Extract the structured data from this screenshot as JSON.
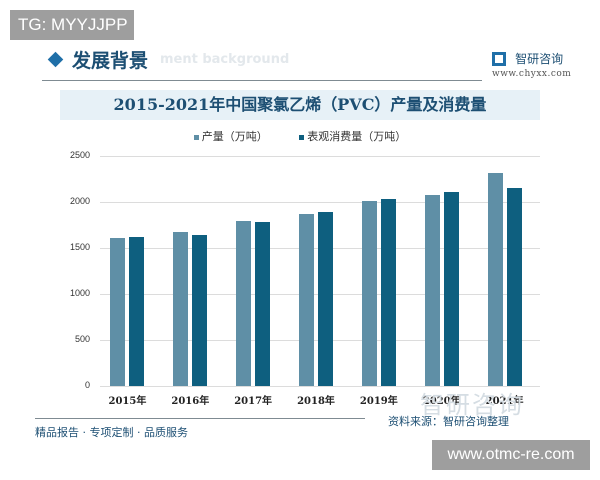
{
  "badge_top": "TG: MYYJJPP",
  "section": {
    "title": "发展背景",
    "ghost_text": "ment background"
  },
  "brand": {
    "name": "智研咨询",
    "url": "www.chyxx.com"
  },
  "colors": {
    "production": "#5f8fa6",
    "consumption": "#0e5f7f",
    "accent": "#1f6fa8",
    "title": "#1d4f73"
  },
  "footer": {
    "left": "精品报告 · 专项定制 · 品质服务",
    "source": "资料来源：智研咨询整理",
    "watermark": "智研咨询"
  },
  "badge_bottom": "www.otmc-re.com",
  "chart_data": {
    "type": "bar",
    "title": "2015-2021年中国聚氯乙烯（PVC）产量及消费量",
    "xlabel": "",
    "ylabel": "",
    "ylim": [
      0,
      2500
    ],
    "yticks": [
      "0",
      "500",
      "1000",
      "1500",
      "2000",
      "2500"
    ],
    "grid": true,
    "legend_position": "top",
    "categories": [
      "2015年",
      "2016年",
      "2017年",
      "2018年",
      "2019年",
      "2020年",
      "2021年"
    ],
    "series": [
      {
        "name": "产量（万吨）",
        "values": [
          1609,
          1669,
          1790,
          1874,
          2011,
          2075,
          2313
        ]
      },
      {
        "name": "表观消费量（万吨）",
        "values": [
          1615,
          1642,
          1784,
          1891,
          2033,
          2108,
          2152
        ]
      }
    ]
  }
}
